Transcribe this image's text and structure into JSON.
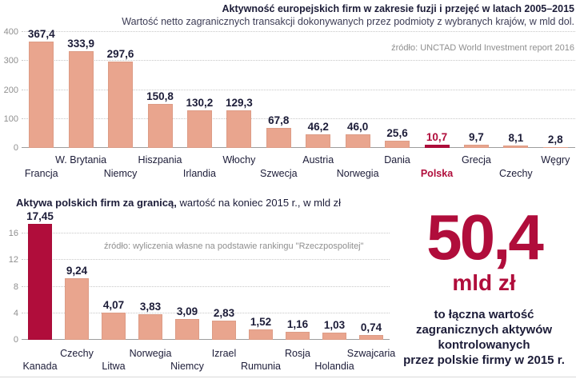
{
  "colors": {
    "background": "#ffffff",
    "bar": "#e9a58e",
    "highlight": "#b00d3b",
    "navy": "#1c1c38",
    "subtext": "#3c3c55",
    "grid": "#c8c8c8",
    "axis": "#9d9d9d",
    "gray": "#8f8f8f",
    "rule": "#d8d8d8"
  },
  "chart_data": [
    {
      "type": "bar",
      "title": "Aktywność europejskich firm w zakresie fuzji i przejęć w latach 2005–2015",
      "subtitle": "Wartość netto zagranicznych transakcji dokonywanych przez podmioty z wybranych krajów, w mld dol.",
      "source": "źródło: UNCTAD World Investment report 2016",
      "categories": [
        "Francja",
        "W. Brytania",
        "Niemcy",
        "Hiszpania",
        "Irlandia",
        "Włochy",
        "Szwecja",
        "Austria",
        "Norwegia",
        "Dania",
        "Polska",
        "Grecja",
        "Czechy",
        "Węgry"
      ],
      "values": [
        367.4,
        333.9,
        297.6,
        150.8,
        130.2,
        129.3,
        67.8,
        46.2,
        46.0,
        25.6,
        10.7,
        9.7,
        8.1,
        2.8
      ],
      "value_labels": [
        "367,4",
        "333,9",
        "297,6",
        "150,8",
        "130,2",
        "129,3",
        "67,8",
        "46,2",
        "46,0",
        "25,6",
        "10,7",
        "9,7",
        "8,1",
        "2,8"
      ],
      "highlight_index": 10,
      "highlight_value_and_label": true,
      "ylim": [
        0,
        400
      ],
      "y_ticks": [
        0,
        100,
        200,
        300,
        400
      ],
      "grid": true,
      "legend": "none"
    },
    {
      "type": "bar",
      "title_bold": "Aktywa polskich firm za granicą,",
      "title_rest": " wartość na koniec 2015 r., w mld zł",
      "source": "źródło: wyliczenia własne na podstawie rankingu \"Rzeczpospolitej\"",
      "categories": [
        "Kanada",
        "Czechy",
        "Litwa",
        "Norwegia",
        "Niemcy",
        "Izrael",
        "Rumunia",
        "Rosja",
        "Holandia",
        "Szwajcaria"
      ],
      "values": [
        17.45,
        9.24,
        4.07,
        3.83,
        3.09,
        2.83,
        1.52,
        1.16,
        1.03,
        0.74
      ],
      "value_labels": [
        "17,45",
        "9,24",
        "4,07",
        "3,83",
        "3,09",
        "2,83",
        "1,52",
        "1,16",
        "1,03",
        "0,74"
      ],
      "highlight_index": 0,
      "highlight_value_and_label": false,
      "ylim": [
        0,
        16
      ],
      "y_ticks": [
        0,
        4,
        8,
        12,
        16
      ],
      "grid": true,
      "legend": "none"
    }
  ],
  "callout": {
    "number": "50,4",
    "unit": "mld zł",
    "lines": [
      "to łączna wartość",
      "zagranicznych aktywów",
      "kontrolowanych",
      "przez polskie firmy w 2015 r."
    ]
  }
}
